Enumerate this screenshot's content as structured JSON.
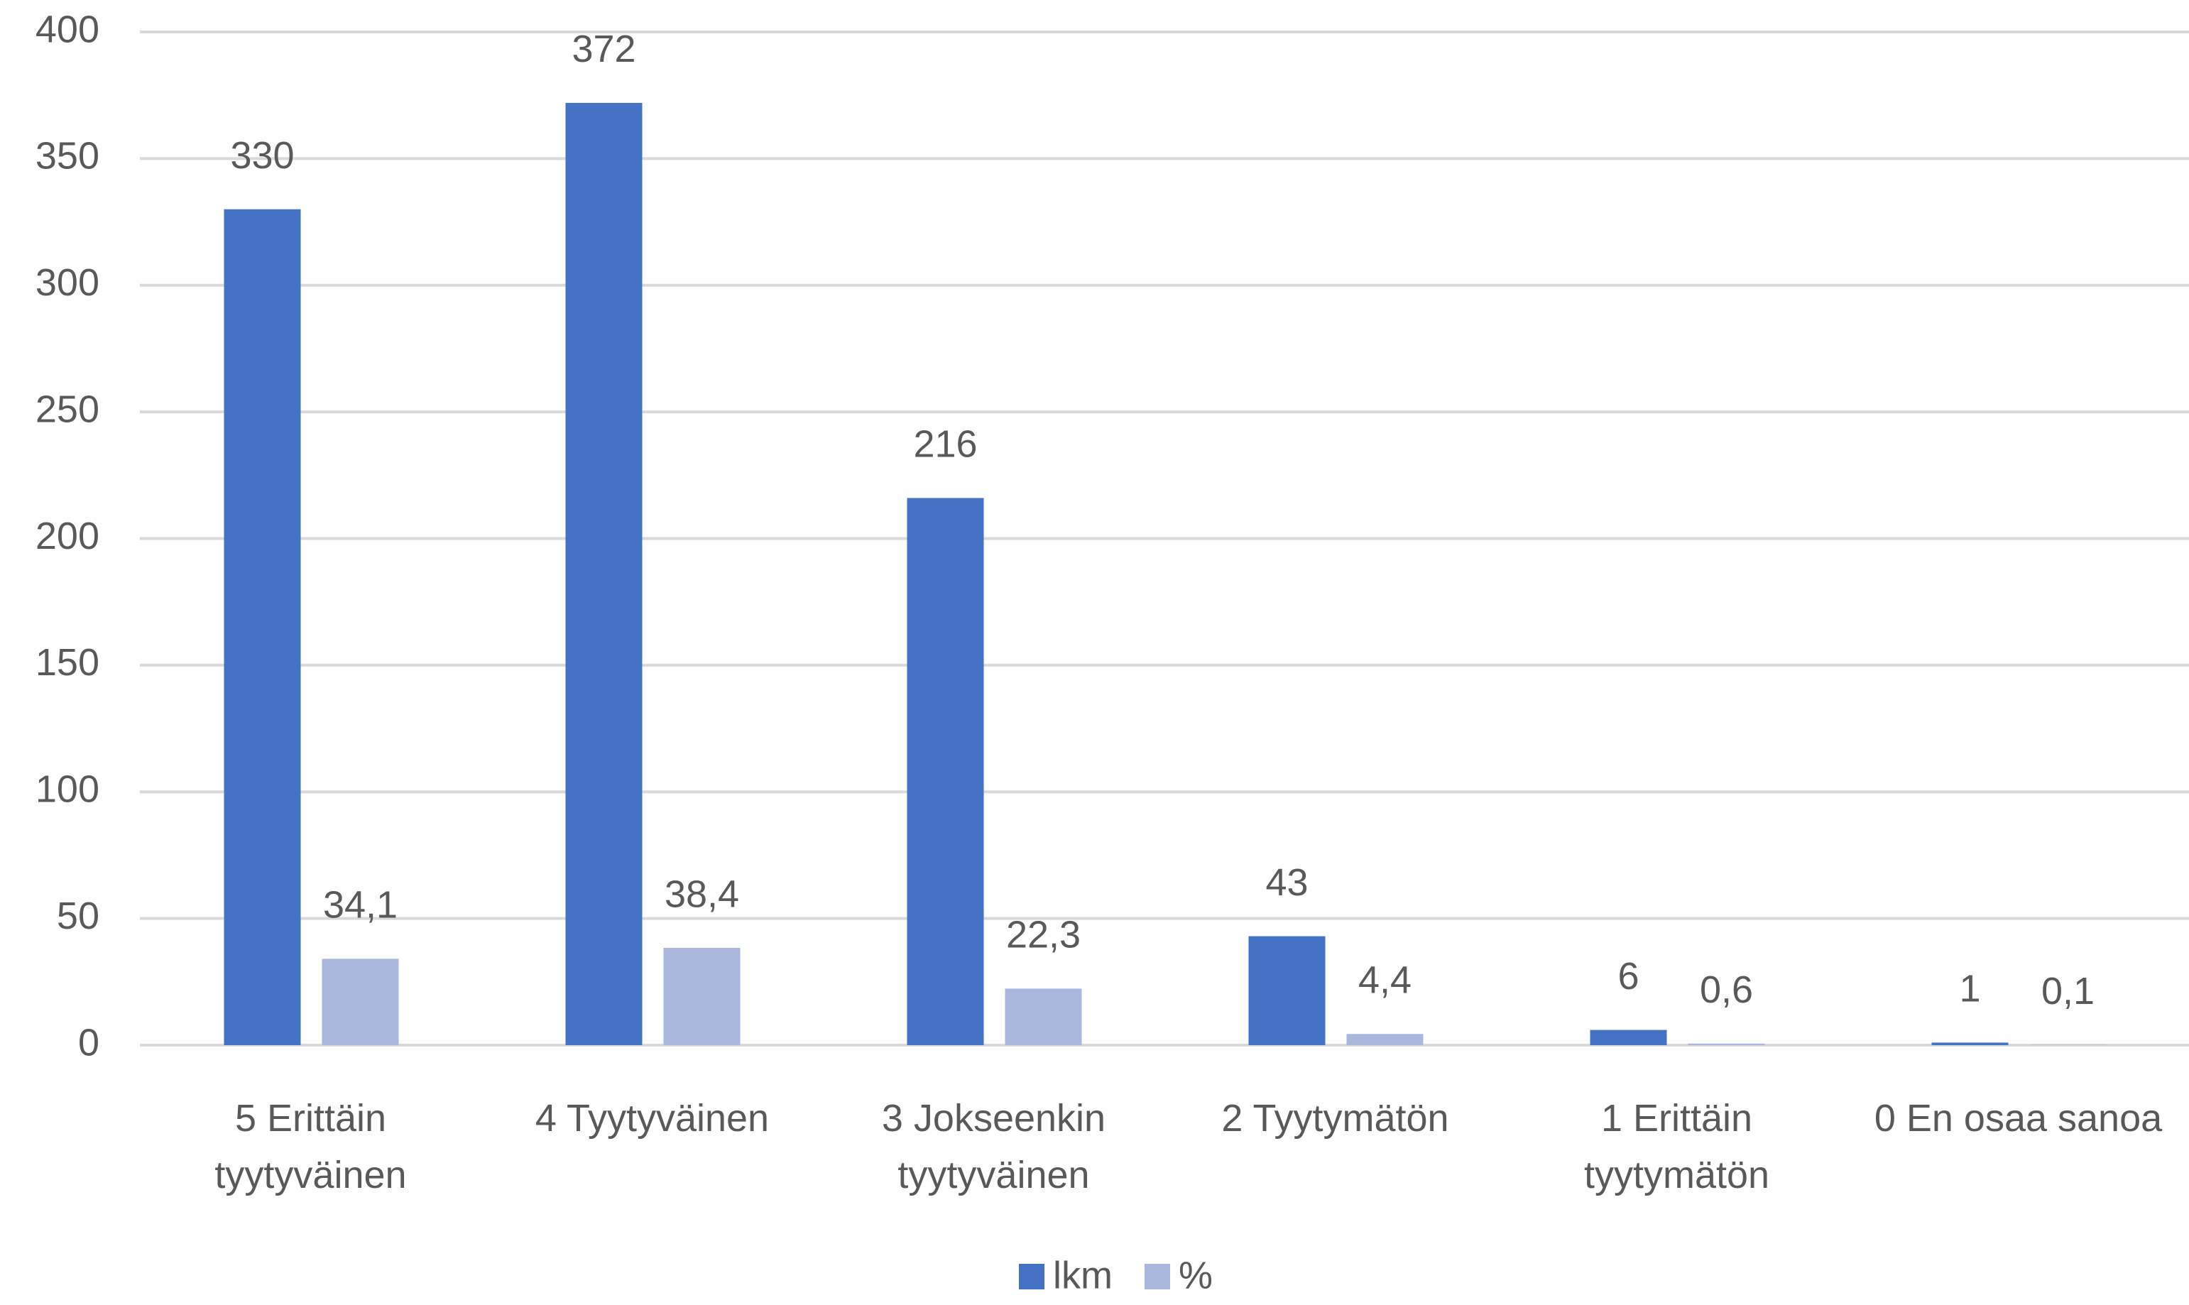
{
  "chart_data": {
    "type": "bar",
    "categories": [
      "5 Erittäin tyytyväinen",
      "4 Tyytyväinen",
      "3 Jokseenkin tyytyväinen",
      "2 Tyytymätön",
      "1 Erittäin tyytymätön",
      "0 En osaa sanoa"
    ],
    "series": [
      {
        "name": "lkm",
        "color": "#4472c4",
        "values": [
          330,
          372,
          216,
          43,
          6,
          1
        ]
      },
      {
        "name": "%",
        "color": "#a9b7dc",
        "values": [
          34.1,
          38.4,
          22.3,
          4.4,
          0.6,
          0.1
        ],
        "value_labels": [
          "34,1",
          "38,4",
          "22,3",
          "4,4",
          "0,6",
          "0,1"
        ]
      }
    ],
    "ylim": [
      0,
      400
    ],
    "yticks": [
      0,
      50,
      100,
      150,
      200,
      250,
      300,
      350,
      400
    ],
    "grid": true,
    "legend": "bottom"
  }
}
